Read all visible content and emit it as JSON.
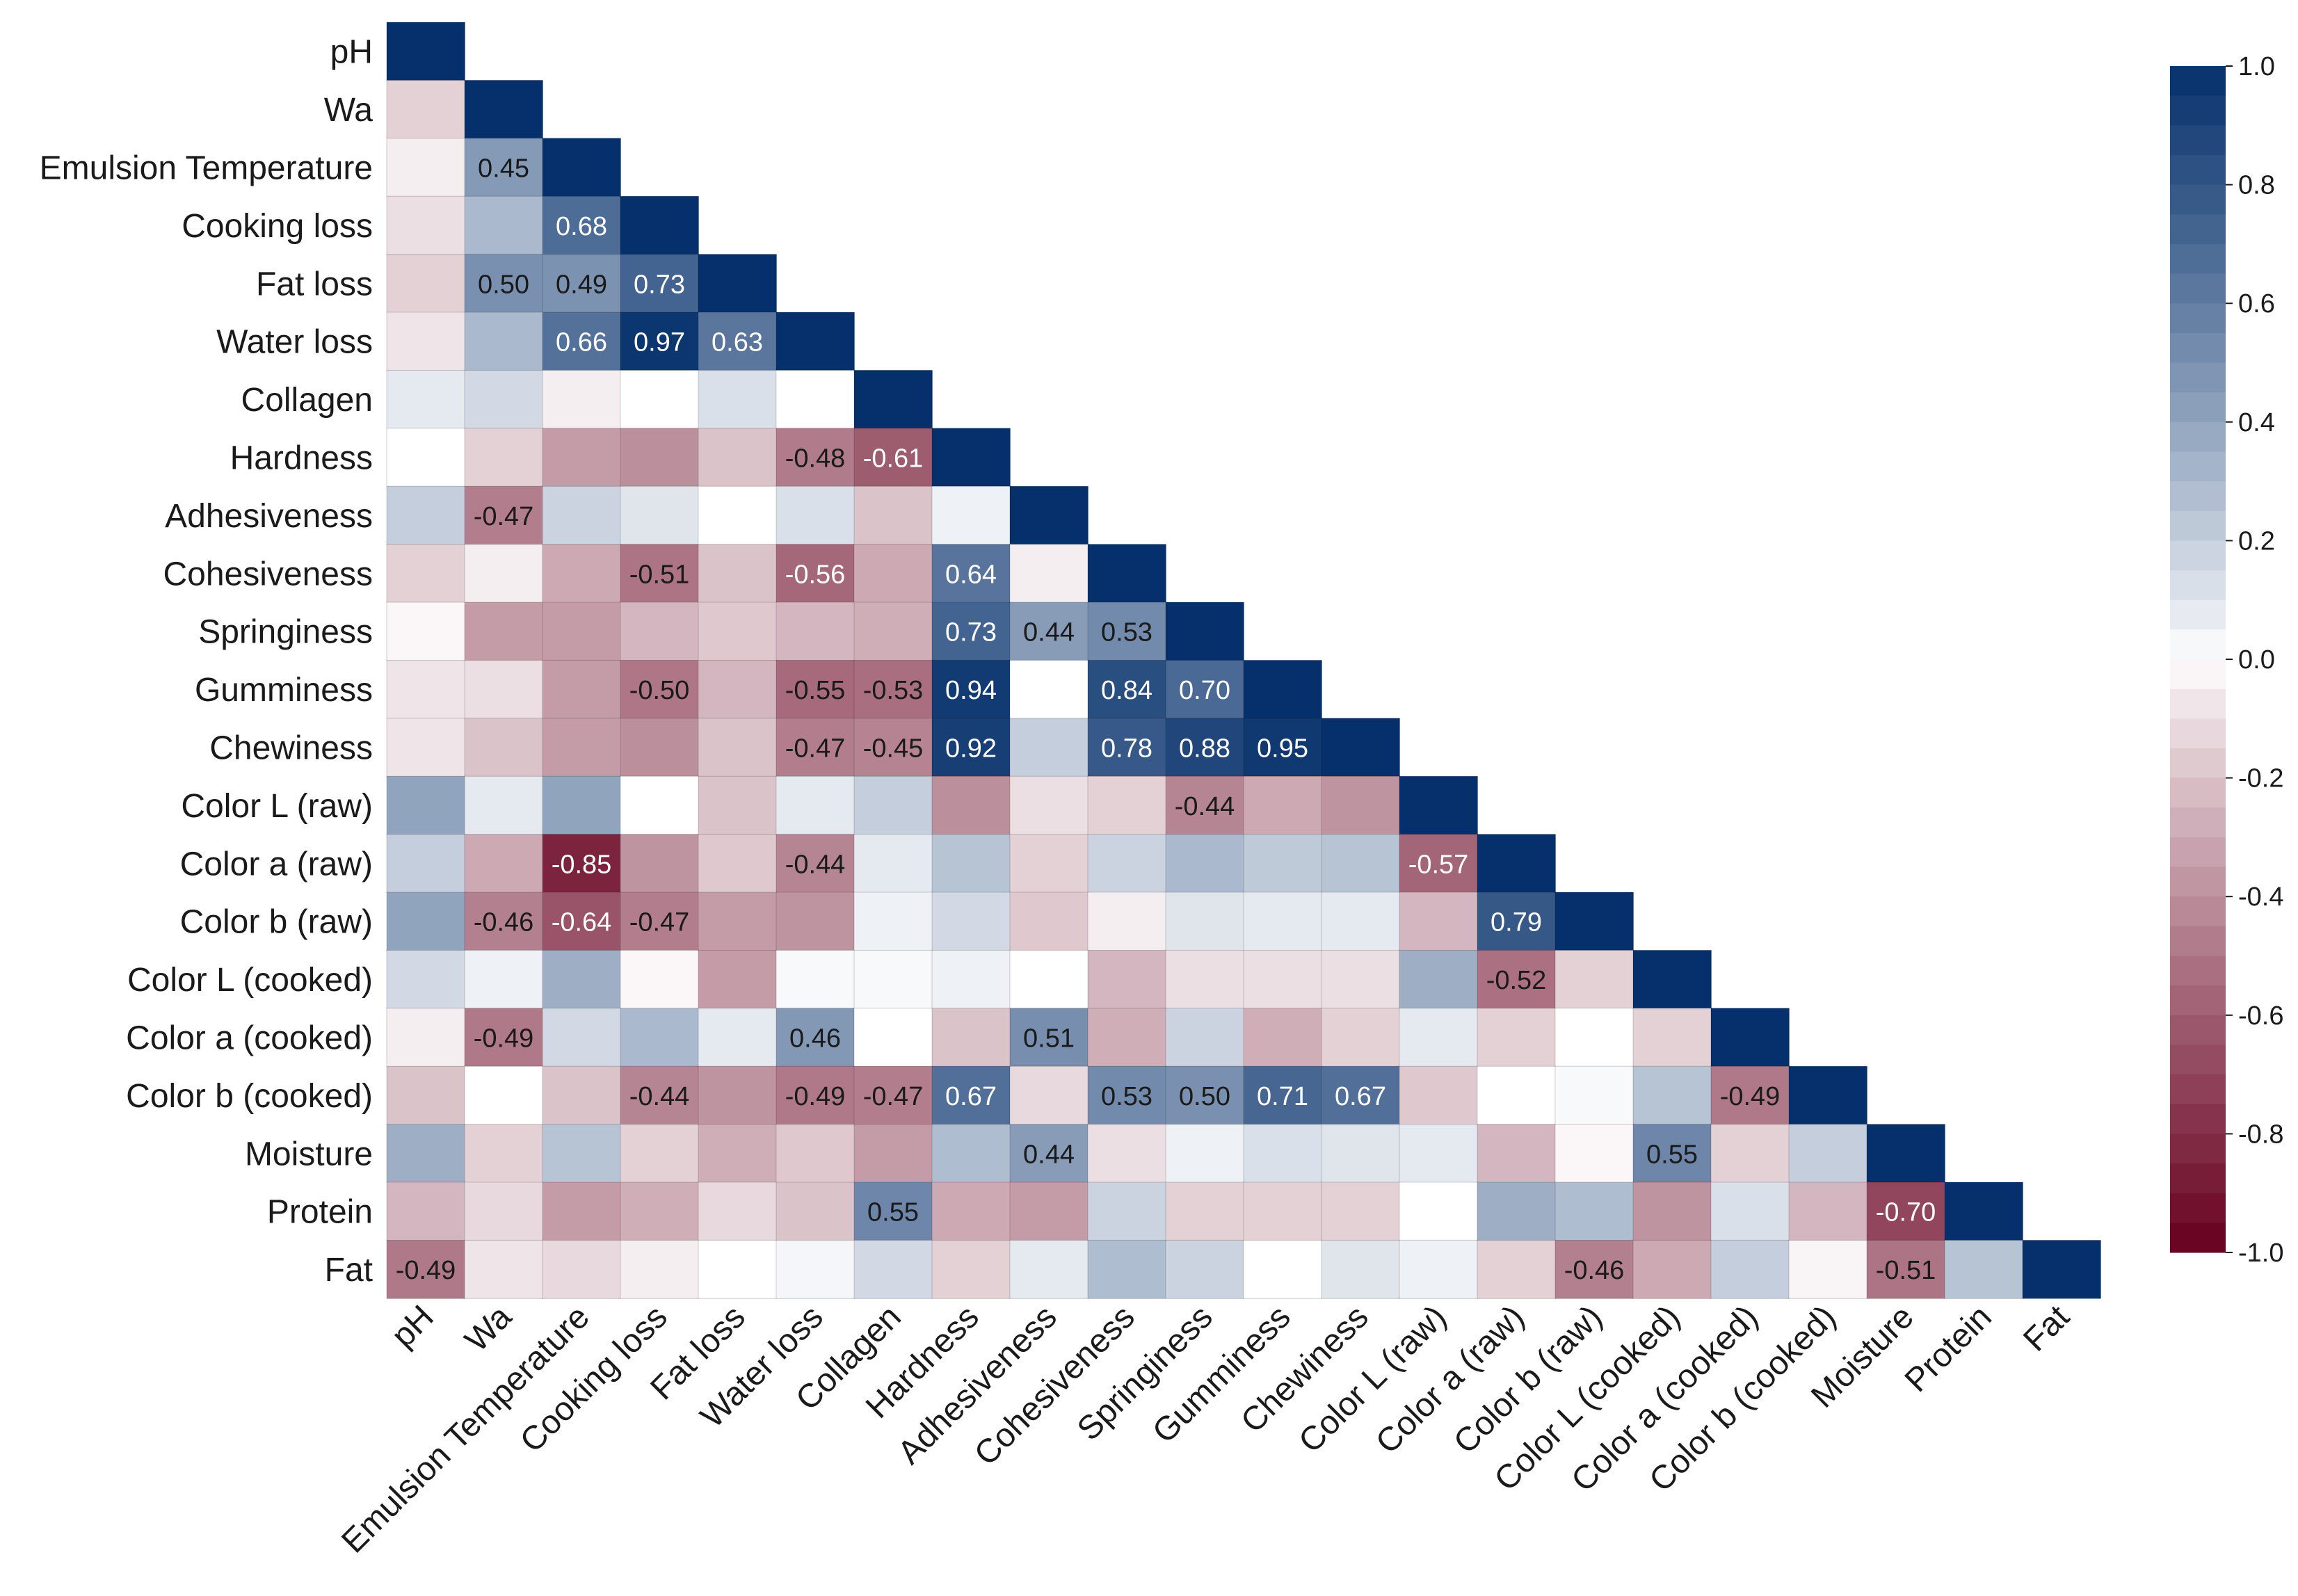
{
  "chart_data": {
    "type": "heatmap",
    "title": "",
    "xlabel": "",
    "ylabel": "",
    "mask": "upper-triangle",
    "variables": [
      "pH",
      "Wa",
      "Emulsion Temperature",
      "Cooking loss",
      "Fat loss",
      "Water loss",
      "Collagen",
      "Hardness",
      "Adhesiveness",
      "Cohesiveness",
      "Springiness",
      "Gumminess",
      "Chewiness",
      "Color L (raw)",
      "Color a (raw)",
      "Color b (raw)",
      "Color L (cooked)",
      "Color a (cooked)",
      "Color b (cooked)",
      "Moisture",
      "Protein",
      "Fat"
    ],
    "values": [
      [
        1.0
      ],
      [
        -0.15,
        1.0
      ],
      [
        -0.05,
        0.45,
        1.0
      ],
      [
        -0.1,
        0.3,
        0.68,
        1.0
      ],
      [
        -0.15,
        0.5,
        0.49,
        0.73,
        1.0
      ],
      [
        -0.08,
        0.3,
        0.66,
        0.97,
        0.63,
        1.0
      ],
      [
        0.08,
        0.15,
        -0.05,
        0.0,
        0.12,
        0.0,
        1.0
      ],
      [
        0.0,
        -0.15,
        -0.35,
        -0.4,
        -0.2,
        -0.48,
        -0.61,
        1.0
      ],
      [
        0.2,
        -0.47,
        0.18,
        0.1,
        0.0,
        0.12,
        -0.2,
        0.05,
        1.0
      ],
      [
        -0.15,
        -0.05,
        -0.3,
        -0.51,
        -0.2,
        -0.56,
        -0.3,
        0.64,
        -0.05,
        1.0
      ],
      [
        -0.02,
        -0.35,
        -0.35,
        -0.25,
        -0.18,
        -0.25,
        -0.28,
        0.73,
        0.44,
        0.53,
        1.0
      ],
      [
        -0.08,
        -0.1,
        -0.35,
        -0.5,
        -0.25,
        -0.55,
        -0.53,
        0.94,
        0.0,
        0.84,
        0.7,
        1.0
      ],
      [
        -0.08,
        -0.2,
        -0.35,
        -0.4,
        -0.2,
        -0.47,
        -0.45,
        0.92,
        0.2,
        0.78,
        0.88,
        0.95,
        1.0
      ],
      [
        0.4,
        0.08,
        0.4,
        0.0,
        -0.2,
        0.08,
        0.2,
        -0.4,
        -0.1,
        -0.15,
        -0.44,
        -0.3,
        -0.38,
        1.0
      ],
      [
        0.2,
        -0.3,
        -0.85,
        -0.38,
        -0.18,
        -0.44,
        0.08,
        0.25,
        -0.15,
        0.18,
        0.3,
        0.22,
        0.25,
        -0.57,
        1.0
      ],
      [
        0.4,
        -0.46,
        -0.64,
        -0.47,
        -0.35,
        -0.38,
        0.05,
        0.15,
        -0.18,
        -0.05,
        0.1,
        0.08,
        0.08,
        -0.25,
        0.79,
        1.0
      ],
      [
        0.15,
        0.05,
        0.35,
        -0.02,
        -0.35,
        0.02,
        0.02,
        0.05,
        0.0,
        -0.25,
        -0.1,
        -0.1,
        -0.1,
        0.35,
        -0.52,
        -0.15,
        1.0
      ],
      [
        -0.05,
        -0.49,
        0.15,
        0.3,
        0.08,
        0.46,
        0.0,
        -0.2,
        0.51,
        -0.28,
        0.18,
        -0.28,
        -0.15,
        0.08,
        -0.15,
        0.0,
        -0.15,
        1.0
      ],
      [
        -0.2,
        0.0,
        -0.2,
        -0.44,
        -0.38,
        -0.49,
        -0.47,
        0.67,
        -0.12,
        0.53,
        0.5,
        0.71,
        0.67,
        -0.18,
        0.0,
        0.02,
        0.25,
        -0.49,
        1.0
      ],
      [
        0.35,
        -0.15,
        0.25,
        -0.15,
        -0.28,
        -0.18,
        -0.35,
        0.28,
        0.44,
        -0.1,
        0.05,
        0.12,
        0.1,
        0.08,
        -0.25,
        -0.02,
        0.55,
        -0.15,
        0.2,
        1.0
      ],
      [
        -0.25,
        -0.12,
        -0.35,
        -0.28,
        -0.12,
        -0.2,
        0.55,
        -0.3,
        -0.35,
        0.18,
        -0.15,
        -0.15,
        -0.15,
        0.0,
        0.35,
        0.28,
        -0.38,
        0.12,
        -0.25,
        -0.7,
        1.0
      ],
      [
        -0.49,
        -0.08,
        -0.12,
        -0.05,
        0.0,
        0.03,
        0.15,
        -0.15,
        0.08,
        0.28,
        0.18,
        0.0,
        0.1,
        0.05,
        -0.15,
        -0.46,
        -0.3,
        0.2,
        -0.03,
        -0.51,
        0.25,
        1.0
      ]
    ],
    "annotation_threshold": 0.44,
    "colorbar": {
      "range": [
        -1.0,
        1.0
      ],
      "ticks": [
        "1.0",
        "0.8",
        "0.6",
        "0.4",
        "0.2",
        "0.0",
        "-0.2",
        "-0.4",
        "-0.6",
        "-0.8",
        "-1.0"
      ],
      "colors": {
        "negative": "#67001f",
        "neutral": "#ffffff",
        "positive": "#05306b"
      }
    }
  }
}
